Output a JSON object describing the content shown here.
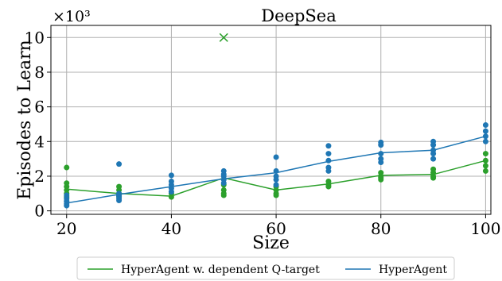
{
  "chart_data": {
    "type": "scatter",
    "title": "DeepSea",
    "xlabel": "Size",
    "ylabel": "Episodes to Learn",
    "y_multiplier_label": "×10³",
    "xlim": [
      17,
      101
    ],
    "ylim": [
      -0.2,
      10.7
    ],
    "x_ticks": [
      20,
      40,
      60,
      80,
      100
    ],
    "y_ticks": [
      0,
      2,
      4,
      6,
      8,
      10
    ],
    "grid": true,
    "legend_position": "bottom",
    "series": [
      {
        "name": "HyperAgent w. dependent Q-target",
        "color": "#2ca02c",
        "line": [
          {
            "x": 20,
            "y": 1.25
          },
          {
            "x": 30,
            "y": 1.0
          },
          {
            "x": 40,
            "y": 0.85
          },
          {
            "x": 50,
            "y": 1.9
          },
          {
            "x": 60,
            "y": 1.2
          },
          {
            "x": 70,
            "y": 1.55
          },
          {
            "x": 80,
            "y": 2.05
          },
          {
            "x": 90,
            "y": 2.1
          },
          {
            "x": 100,
            "y": 2.9
          }
        ],
        "points": [
          {
            "x": 20,
            "y": 2.5
          },
          {
            "x": 20,
            "y": 1.6
          },
          {
            "x": 20,
            "y": 1.4
          },
          {
            "x": 20,
            "y": 1.2
          },
          {
            "x": 20,
            "y": 1.0
          },
          {
            "x": 20,
            "y": 0.8
          },
          {
            "x": 30,
            "y": 1.4
          },
          {
            "x": 30,
            "y": 1.2
          },
          {
            "x": 30,
            "y": 1.0
          },
          {
            "x": 30,
            "y": 0.9
          },
          {
            "x": 30,
            "y": 0.8
          },
          {
            "x": 40,
            "y": 1.0
          },
          {
            "x": 40,
            "y": 0.8
          },
          {
            "x": 50,
            "y": 1.5
          },
          {
            "x": 50,
            "y": 1.2
          },
          {
            "x": 50,
            "y": 1.0
          },
          {
            "x": 50,
            "y": 0.9
          },
          {
            "x": 60,
            "y": 1.4
          },
          {
            "x": 60,
            "y": 1.2
          },
          {
            "x": 60,
            "y": 1.0
          },
          {
            "x": 60,
            "y": 0.9
          },
          {
            "x": 70,
            "y": 1.7
          },
          {
            "x": 70,
            "y": 1.5
          },
          {
            "x": 70,
            "y": 1.4
          },
          {
            "x": 80,
            "y": 2.2
          },
          {
            "x": 80,
            "y": 2.0
          },
          {
            "x": 80,
            "y": 1.9
          },
          {
            "x": 80,
            "y": 1.8
          },
          {
            "x": 90,
            "y": 2.4
          },
          {
            "x": 90,
            "y": 2.2
          },
          {
            "x": 90,
            "y": 2.0
          },
          {
            "x": 90,
            "y": 1.9
          },
          {
            "x": 100,
            "y": 3.3
          },
          {
            "x": 100,
            "y": 2.9
          },
          {
            "x": 100,
            "y": 2.6
          },
          {
            "x": 100,
            "y": 2.3
          }
        ],
        "outlier": {
          "x": 50,
          "y": 10.0,
          "marker": "x"
        }
      },
      {
        "name": "HyperAgent",
        "color": "#1f77b4",
        "line": [
          {
            "x": 20,
            "y": 0.45
          },
          {
            "x": 30,
            "y": 0.95
          },
          {
            "x": 40,
            "y": 1.4
          },
          {
            "x": 50,
            "y": 1.85
          },
          {
            "x": 60,
            "y": 2.2
          },
          {
            "x": 70,
            "y": 2.85
          },
          {
            "x": 80,
            "y": 3.35
          },
          {
            "x": 90,
            "y": 3.5
          },
          {
            "x": 100,
            "y": 4.3
          }
        ],
        "points": [
          {
            "x": 20,
            "y": 0.9
          },
          {
            "x": 20,
            "y": 0.7
          },
          {
            "x": 20,
            "y": 0.55
          },
          {
            "x": 20,
            "y": 0.4
          },
          {
            "x": 20,
            "y": 0.3
          },
          {
            "x": 30,
            "y": 2.7
          },
          {
            "x": 30,
            "y": 1.0
          },
          {
            "x": 30,
            "y": 0.85
          },
          {
            "x": 30,
            "y": 0.7
          },
          {
            "x": 30,
            "y": 0.6
          },
          {
            "x": 40,
            "y": 2.05
          },
          {
            "x": 40,
            "y": 1.7
          },
          {
            "x": 40,
            "y": 1.5
          },
          {
            "x": 40,
            "y": 1.3
          },
          {
            "x": 40,
            "y": 1.1
          },
          {
            "x": 50,
            "y": 2.3
          },
          {
            "x": 50,
            "y": 2.1
          },
          {
            "x": 50,
            "y": 2.0
          },
          {
            "x": 50,
            "y": 1.8
          },
          {
            "x": 50,
            "y": 1.6
          },
          {
            "x": 60,
            "y": 3.1
          },
          {
            "x": 60,
            "y": 2.3
          },
          {
            "x": 60,
            "y": 2.0
          },
          {
            "x": 60,
            "y": 1.8
          },
          {
            "x": 60,
            "y": 1.5
          },
          {
            "x": 70,
            "y": 3.75
          },
          {
            "x": 70,
            "y": 3.3
          },
          {
            "x": 70,
            "y": 2.9
          },
          {
            "x": 70,
            "y": 2.5
          },
          {
            "x": 70,
            "y": 2.3
          },
          {
            "x": 80,
            "y": 3.95
          },
          {
            "x": 80,
            "y": 3.8
          },
          {
            "x": 80,
            "y": 3.3
          },
          {
            "x": 80,
            "y": 3.0
          },
          {
            "x": 80,
            "y": 2.8
          },
          {
            "x": 90,
            "y": 4.0
          },
          {
            "x": 90,
            "y": 3.8
          },
          {
            "x": 90,
            "y": 3.5
          },
          {
            "x": 90,
            "y": 3.3
          },
          {
            "x": 90,
            "y": 3.0
          },
          {
            "x": 100,
            "y": 4.95
          },
          {
            "x": 100,
            "y": 4.6
          },
          {
            "x": 100,
            "y": 4.3
          },
          {
            "x": 100,
            "y": 4.0
          }
        ]
      }
    ]
  }
}
